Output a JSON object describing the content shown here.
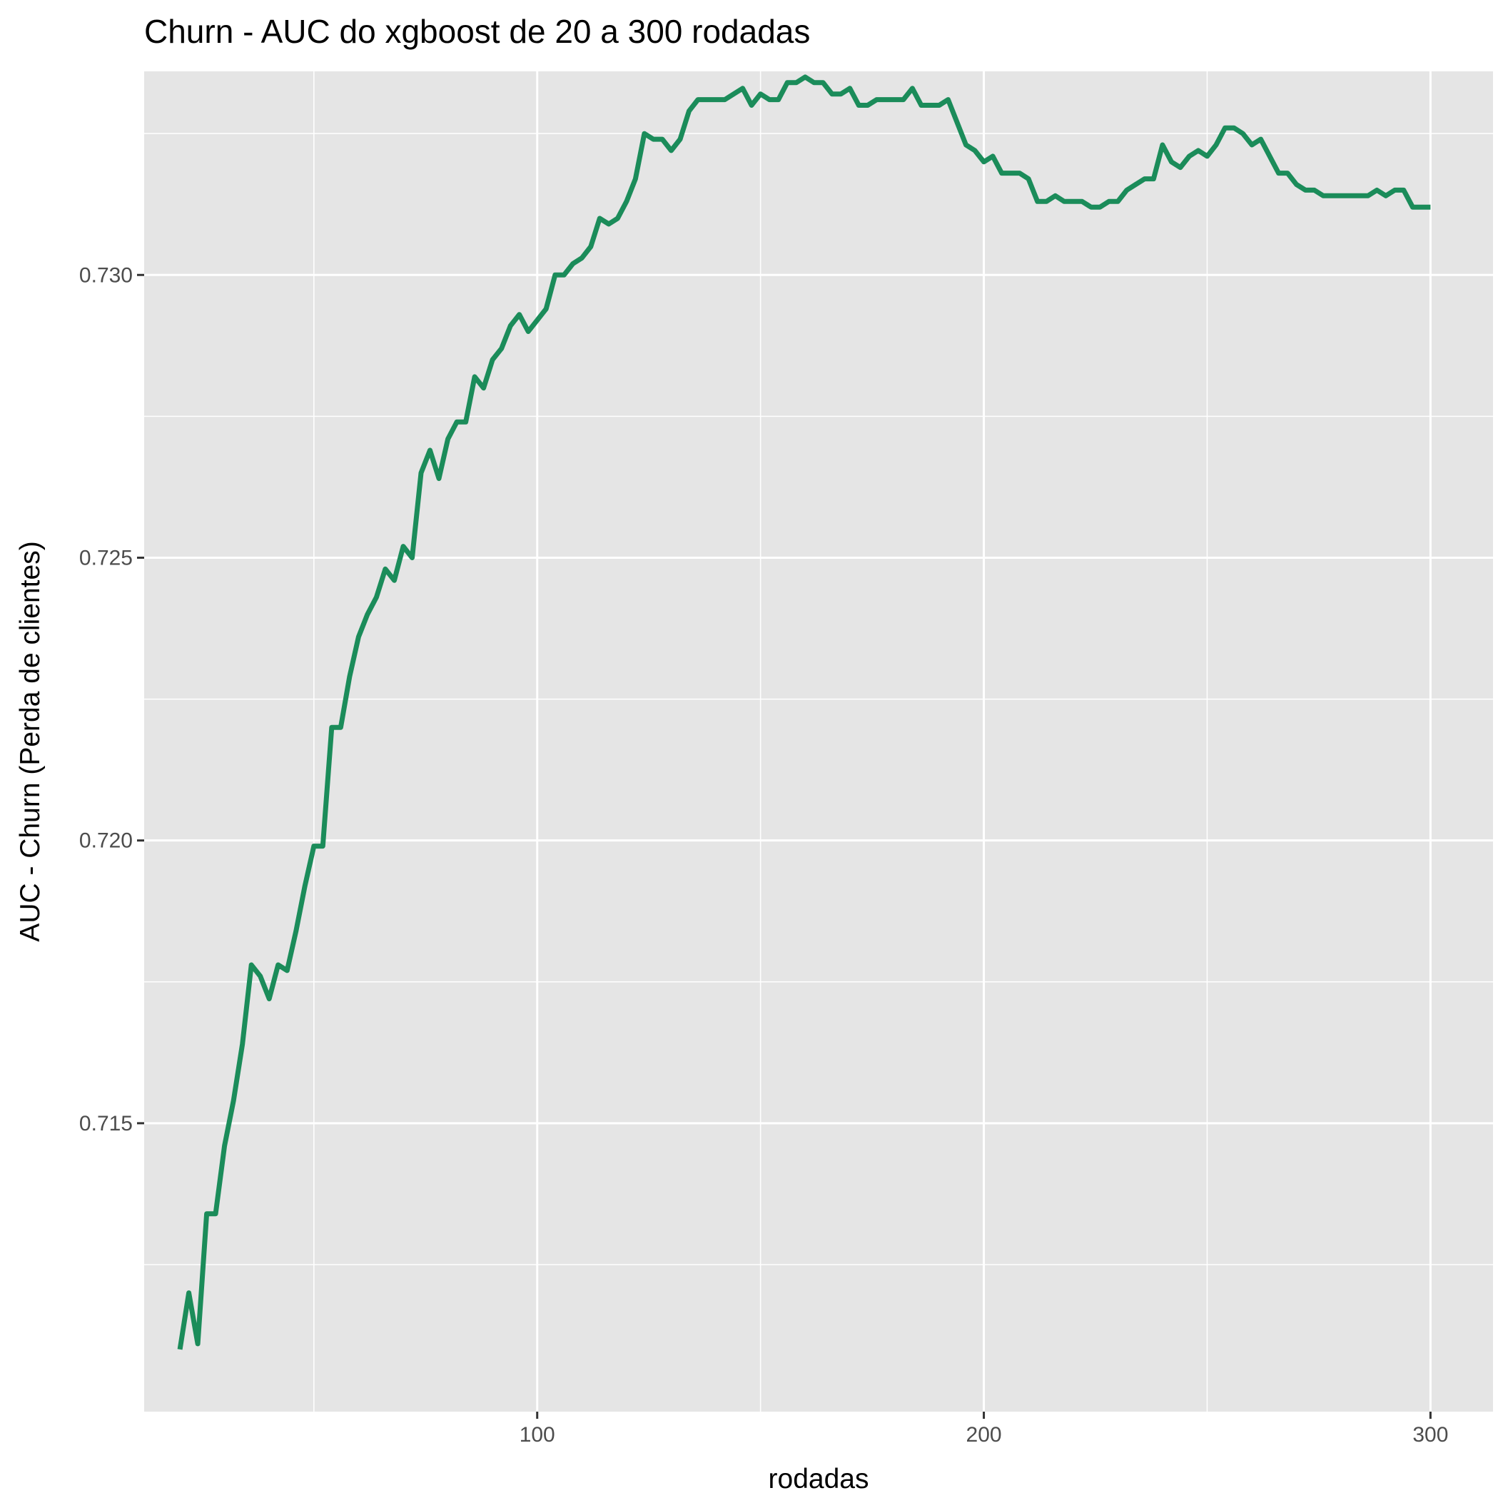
{
  "chart_data": {
    "type": "line",
    "title": "Churn - AUC do xgboost de 20 a 300 rodadas",
    "xlabel": "rodadas",
    "ylabel": "AUC - Churn (Perda de clientes)",
    "xlim": [
      12,
      314
    ],
    "ylim": [
      0.7099,
      0.7336
    ],
    "x_ticks": [
      100,
      200,
      300
    ],
    "x_tick_labels": [
      "100",
      "200",
      "300"
    ],
    "y_ticks": [
      0.715,
      0.72,
      0.725,
      0.73
    ],
    "y_tick_labels": [
      "0.715",
      "0.720",
      "0.725",
      "0.730"
    ],
    "grid": true,
    "legend": "none",
    "colors": {
      "line": "#1b8c5a",
      "panel": "#e5e5e5",
      "grid": "#ffffff"
    },
    "series": [
      {
        "x": [
          20,
          22,
          24,
          26,
          28,
          30,
          32,
          34,
          36,
          38,
          40,
          42,
          44,
          46,
          48,
          50,
          52,
          54,
          56,
          58,
          60,
          62,
          64,
          66,
          68,
          70,
          72,
          74,
          76,
          78,
          80,
          82,
          84,
          86,
          88,
          90,
          92,
          94,
          96,
          98,
          100,
          102,
          104,
          106,
          108,
          110,
          112,
          114,
          116,
          118,
          120,
          122,
          124,
          126,
          128,
          130,
          132,
          134,
          136,
          138,
          140,
          142,
          144,
          146,
          148,
          150,
          152,
          154,
          156,
          158,
          160,
          162,
          164,
          166,
          168,
          170,
          172,
          174,
          176,
          178,
          180,
          182,
          184,
          186,
          188,
          190,
          192,
          194,
          196,
          198,
          200,
          202,
          204,
          206,
          208,
          210,
          212,
          214,
          216,
          218,
          220,
          222,
          224,
          226,
          228,
          230,
          232,
          234,
          236,
          238,
          240,
          242,
          244,
          246,
          248,
          250,
          252,
          254,
          256,
          258,
          260,
          262,
          264,
          266,
          268,
          270,
          272,
          274,
          276,
          278,
          280,
          282,
          284,
          286,
          288,
          290,
          292,
          294,
          296,
          298,
          300
        ],
        "y": [
          0.711,
          0.712,
          0.7111,
          0.7134,
          0.7134,
          0.7146,
          0.7154,
          0.7164,
          0.7178,
          0.7176,
          0.7172,
          0.7178,
          0.7177,
          0.7184,
          0.7192,
          0.7199,
          0.7199,
          0.722,
          0.722,
          0.7229,
          0.7236,
          0.724,
          0.7243,
          0.7248,
          0.7246,
          0.7252,
          0.725,
          0.7265,
          0.7269,
          0.7264,
          0.7271,
          0.7274,
          0.7274,
          0.7282,
          0.728,
          0.7285,
          0.7287,
          0.7291,
          0.7293,
          0.729,
          0.7292,
          0.7294,
          0.73,
          0.73,
          0.7302,
          0.7303,
          0.7305,
          0.731,
          0.7309,
          0.731,
          0.7313,
          0.7317,
          0.7325,
          0.7324,
          0.7324,
          0.7322,
          0.7324,
          0.7329,
          0.7331,
          0.7331,
          0.7331,
          0.7331,
          0.7332,
          0.7333,
          0.733,
          0.7332,
          0.7331,
          0.7331,
          0.7334,
          0.7334,
          0.7335,
          0.7334,
          0.7334,
          0.7332,
          0.7332,
          0.7333,
          0.733,
          0.733,
          0.7331,
          0.7331,
          0.7331,
          0.7331,
          0.7333,
          0.733,
          0.733,
          0.733,
          0.7331,
          0.7327,
          0.7323,
          0.7322,
          0.732,
          0.7321,
          0.7318,
          0.7318,
          0.7318,
          0.7317,
          0.7313,
          0.7313,
          0.7314,
          0.7313,
          0.7313,
          0.7313,
          0.7312,
          0.7312,
          0.7313,
          0.7313,
          0.7315,
          0.7316,
          0.7317,
          0.7317,
          0.7323,
          0.732,
          0.7319,
          0.7321,
          0.7322,
          0.7321,
          0.7323,
          0.7326,
          0.7326,
          0.7325,
          0.7323,
          0.7324,
          0.7321,
          0.7318,
          0.7318,
          0.7316,
          0.7315,
          0.7315,
          0.7314,
          0.7314,
          0.7314,
          0.7314,
          0.7314,
          0.7314,
          0.7315,
          0.7314,
          0.7315,
          0.7315,
          0.7312,
          0.7312,
          0.7312
        ]
      }
    ]
  }
}
